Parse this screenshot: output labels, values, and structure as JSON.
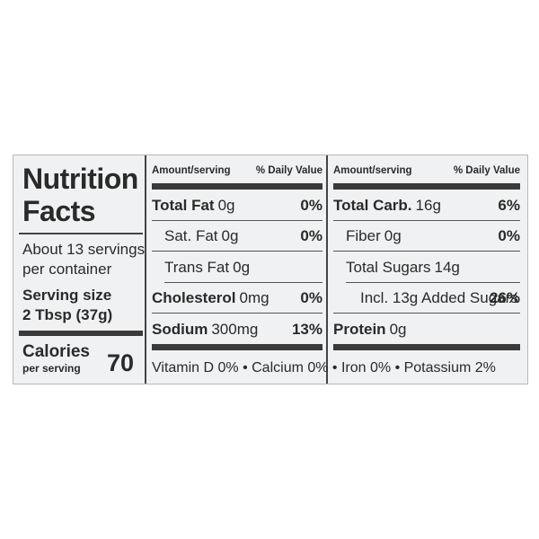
{
  "label": {
    "title_lines": [
      "Nutrition",
      "Facts"
    ],
    "servings_lines": [
      "About 13 servings",
      "per container"
    ],
    "serving_size_label": "Serving size",
    "serving_size": "2 Tbsp (37g)",
    "calories_label": "Calories",
    "calories_sub": "per serving",
    "calories": "70",
    "columns": [
      {
        "header_amount": "Amount/serving",
        "header_dv": "% Daily Value",
        "rows": [
          {
            "name": "Total Fat",
            "amount": "0g",
            "dv": "0%",
            "bold": true
          },
          {
            "name": "Sat. Fat",
            "amount": "0g",
            "dv": "0%",
            "indent": true
          },
          {
            "name": "Trans Fat",
            "amount": "0g",
            "indent": true
          },
          {
            "name": "Cholesterol",
            "amount": "0mg",
            "dv": "0%",
            "bold": true
          },
          {
            "name": "Sodium",
            "amount": "300mg",
            "dv": "13%",
            "bold": true
          }
        ]
      },
      {
        "header_amount": "Amount/serving",
        "header_dv": "% Daily Value",
        "rows": [
          {
            "name": "Total Carb.",
            "amount": "16g",
            "dv": "6%",
            "bold": true
          },
          {
            "name": "Fiber",
            "amount": "0g",
            "dv": "0%",
            "indent": true
          },
          {
            "name": "Total Sugars",
            "amount": "14g",
            "indent": true
          },
          {
            "name": "Incl. 13g Added Sugars",
            "dv": "26%",
            "indent2": true
          },
          {
            "name": "Protein",
            "amount": "0g",
            "bold": true
          }
        ]
      }
    ],
    "footer": "Vitamin D 0% • Calcium 0% • Iron 0% • Potassium 2%"
  }
}
